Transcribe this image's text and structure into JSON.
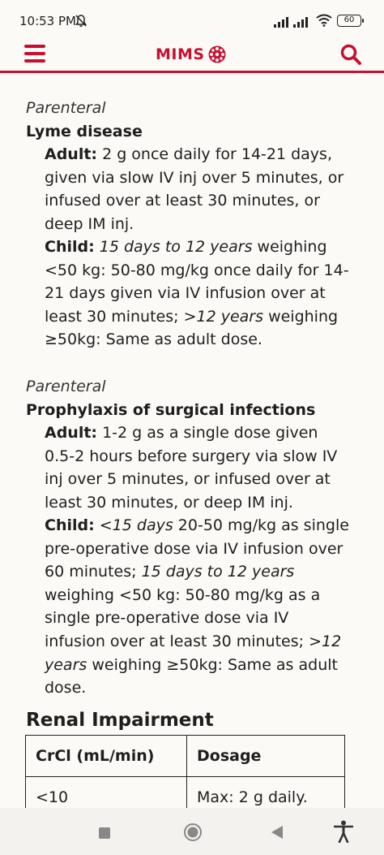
{
  "status_bar": {
    "time": "10:53 PM",
    "battery": "60"
  },
  "header": {
    "logo_text": "MIMS",
    "brand_color": "#c8102e",
    "menu_icon": "hamburger-menu-icon",
    "search_icon": "search-icon"
  },
  "sections": [
    {
      "route": "Parenteral",
      "title": "Lyme disease",
      "adult_label": "Adult:",
      "adult_text": "2 g once daily for 14-21 days, given via slow IV inj over 5 minutes, or infused over at least 30 minutes, or deep IM inj.",
      "child_label": "Child:",
      "child_age1": "15 days to 12 years",
      "child_text1": "weighing <50 kg: 50-80 mg/kg once daily for 14-21 days given via IV infusion over at least 30 minutes;",
      "child_age2": ">12 years",
      "child_text2": "weighing ≥50kg: Same as adult dose."
    },
    {
      "route": "Parenteral",
      "title": "Prophylaxis of surgical infections",
      "adult_label": "Adult:",
      "adult_text": "1-2 g as a single dose given 0.5-2 hours before surgery via slow IV inj over 5 minutes, or infused over at least 30 minutes, or deep IM inj.",
      "child_label": "Child:",
      "child_age1": "<15 days",
      "child_text1": "20-50 mg/kg as single pre-operative dose via IV infusion over 60 minutes;",
      "child_age2": "15 days to 12 years",
      "child_text2": "weighing <50 kg: 50-80 mg/kg as a single pre-operative dose via IV infusion over at least 30 minutes;",
      "child_age3": ">12 years",
      "child_text3": "weighing ≥50kg: Same as adult dose."
    }
  ],
  "renal": {
    "title": "Renal Impairment",
    "headers": [
      "CrCl (mL/min)",
      "Dosage"
    ],
    "rows": [
      [
        "<10",
        "Max: 2 g daily."
      ]
    ]
  },
  "nav": {
    "recents_icon": "square-recents-icon",
    "home_icon": "circle-home-icon",
    "back_icon": "triangle-back-icon",
    "accessibility_icon": "accessibility-icon"
  }
}
